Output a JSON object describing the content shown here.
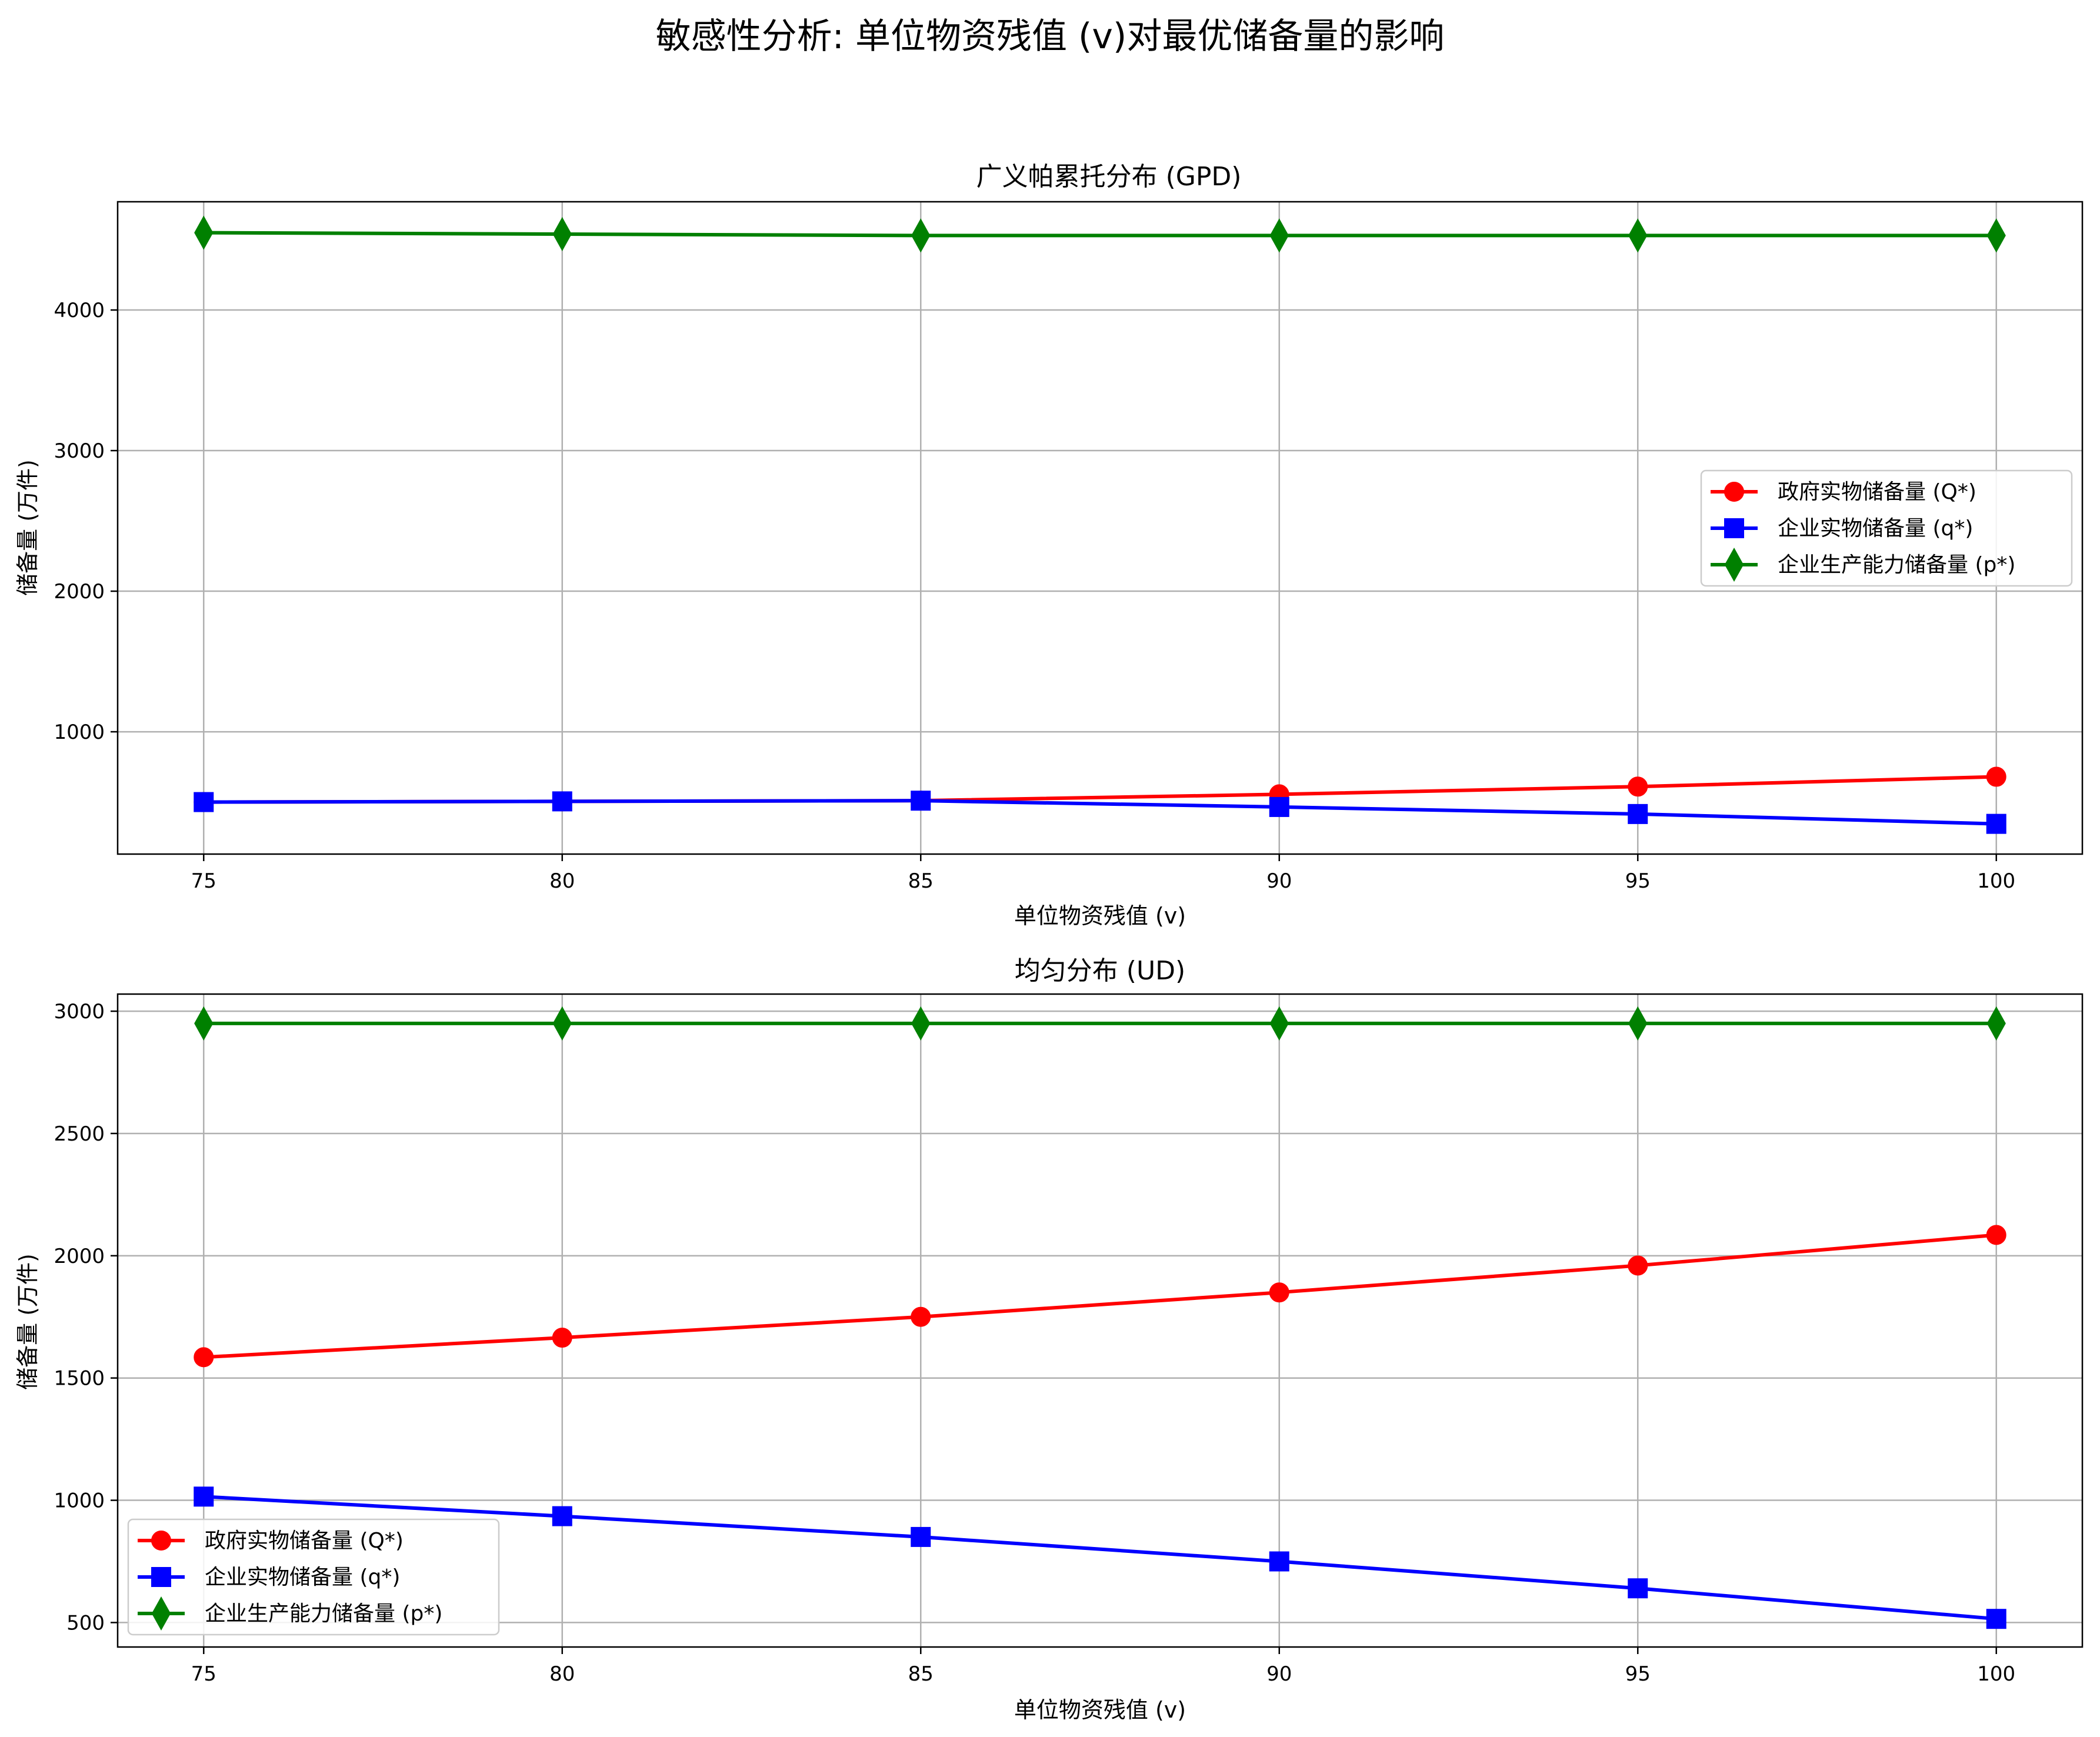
{
  "suptitle": "敏感性分析: 单位物资残值 (v)对最优储备量的影响",
  "colors": {
    "Q": "#ff0000",
    "q": "#0000ff",
    "p": "#008000",
    "grid": "#b0b0b0"
  },
  "chart_data": [
    {
      "type": "line",
      "title": "广义帕累托分布 (GPD)",
      "xlabel": "单位物资残值 (v)",
      "ylabel": "储备量 (万件)",
      "x": [
        75,
        80,
        85,
        90,
        95,
        100
      ],
      "xlim": [
        73.8,
        101.2
      ],
      "ylim": [
        130,
        4770
      ],
      "xticks": [
        75,
        80,
        85,
        90,
        95,
        100
      ],
      "yticks": [
        1000,
        2000,
        3000,
        4000
      ],
      "grid": true,
      "legend_position": "center-right",
      "series": [
        {
          "name": "政府实物储备量 (Q*)",
          "color": "#ff0000",
          "marker": "circle",
          "values": [
            500,
            505,
            510,
            555,
            610,
            680
          ]
        },
        {
          "name": "企业实物储备量 (q*)",
          "color": "#0000ff",
          "marker": "square",
          "values": [
            500,
            505,
            510,
            465,
            415,
            345
          ]
        },
        {
          "name": "企业生产能力储备量 (p*)",
          "color": "#008000",
          "marker": "diamond",
          "values": [
            4550,
            4540,
            4530,
            4530,
            4530,
            4530
          ]
        }
      ]
    },
    {
      "type": "line",
      "title": "均匀分布 (UD)",
      "xlabel": "单位物资残值 (v)",
      "ylabel": "储备量 (万件)",
      "x": [
        75,
        80,
        85,
        90,
        95,
        100
      ],
      "xlim": [
        73.8,
        101.2
      ],
      "ylim": [
        400,
        3070
      ],
      "xticks": [
        75,
        80,
        85,
        90,
        95,
        100
      ],
      "yticks": [
        500,
        1000,
        1500,
        2000,
        2500,
        3000
      ],
      "grid": true,
      "legend_position": "lower-left",
      "series": [
        {
          "name": "政府实物储备量 (Q*)",
          "color": "#ff0000",
          "marker": "circle",
          "values": [
            1585,
            1665,
            1750,
            1850,
            1960,
            2085
          ]
        },
        {
          "name": "企业实物储备量 (q*)",
          "color": "#0000ff",
          "marker": "square",
          "values": [
            1015,
            935,
            850,
            750,
            640,
            515
          ]
        },
        {
          "name": "企业生产能力储备量 (p*)",
          "color": "#008000",
          "marker": "diamond",
          "values": [
            2950,
            2950,
            2950,
            2950,
            2950,
            2950
          ]
        }
      ]
    }
  ]
}
